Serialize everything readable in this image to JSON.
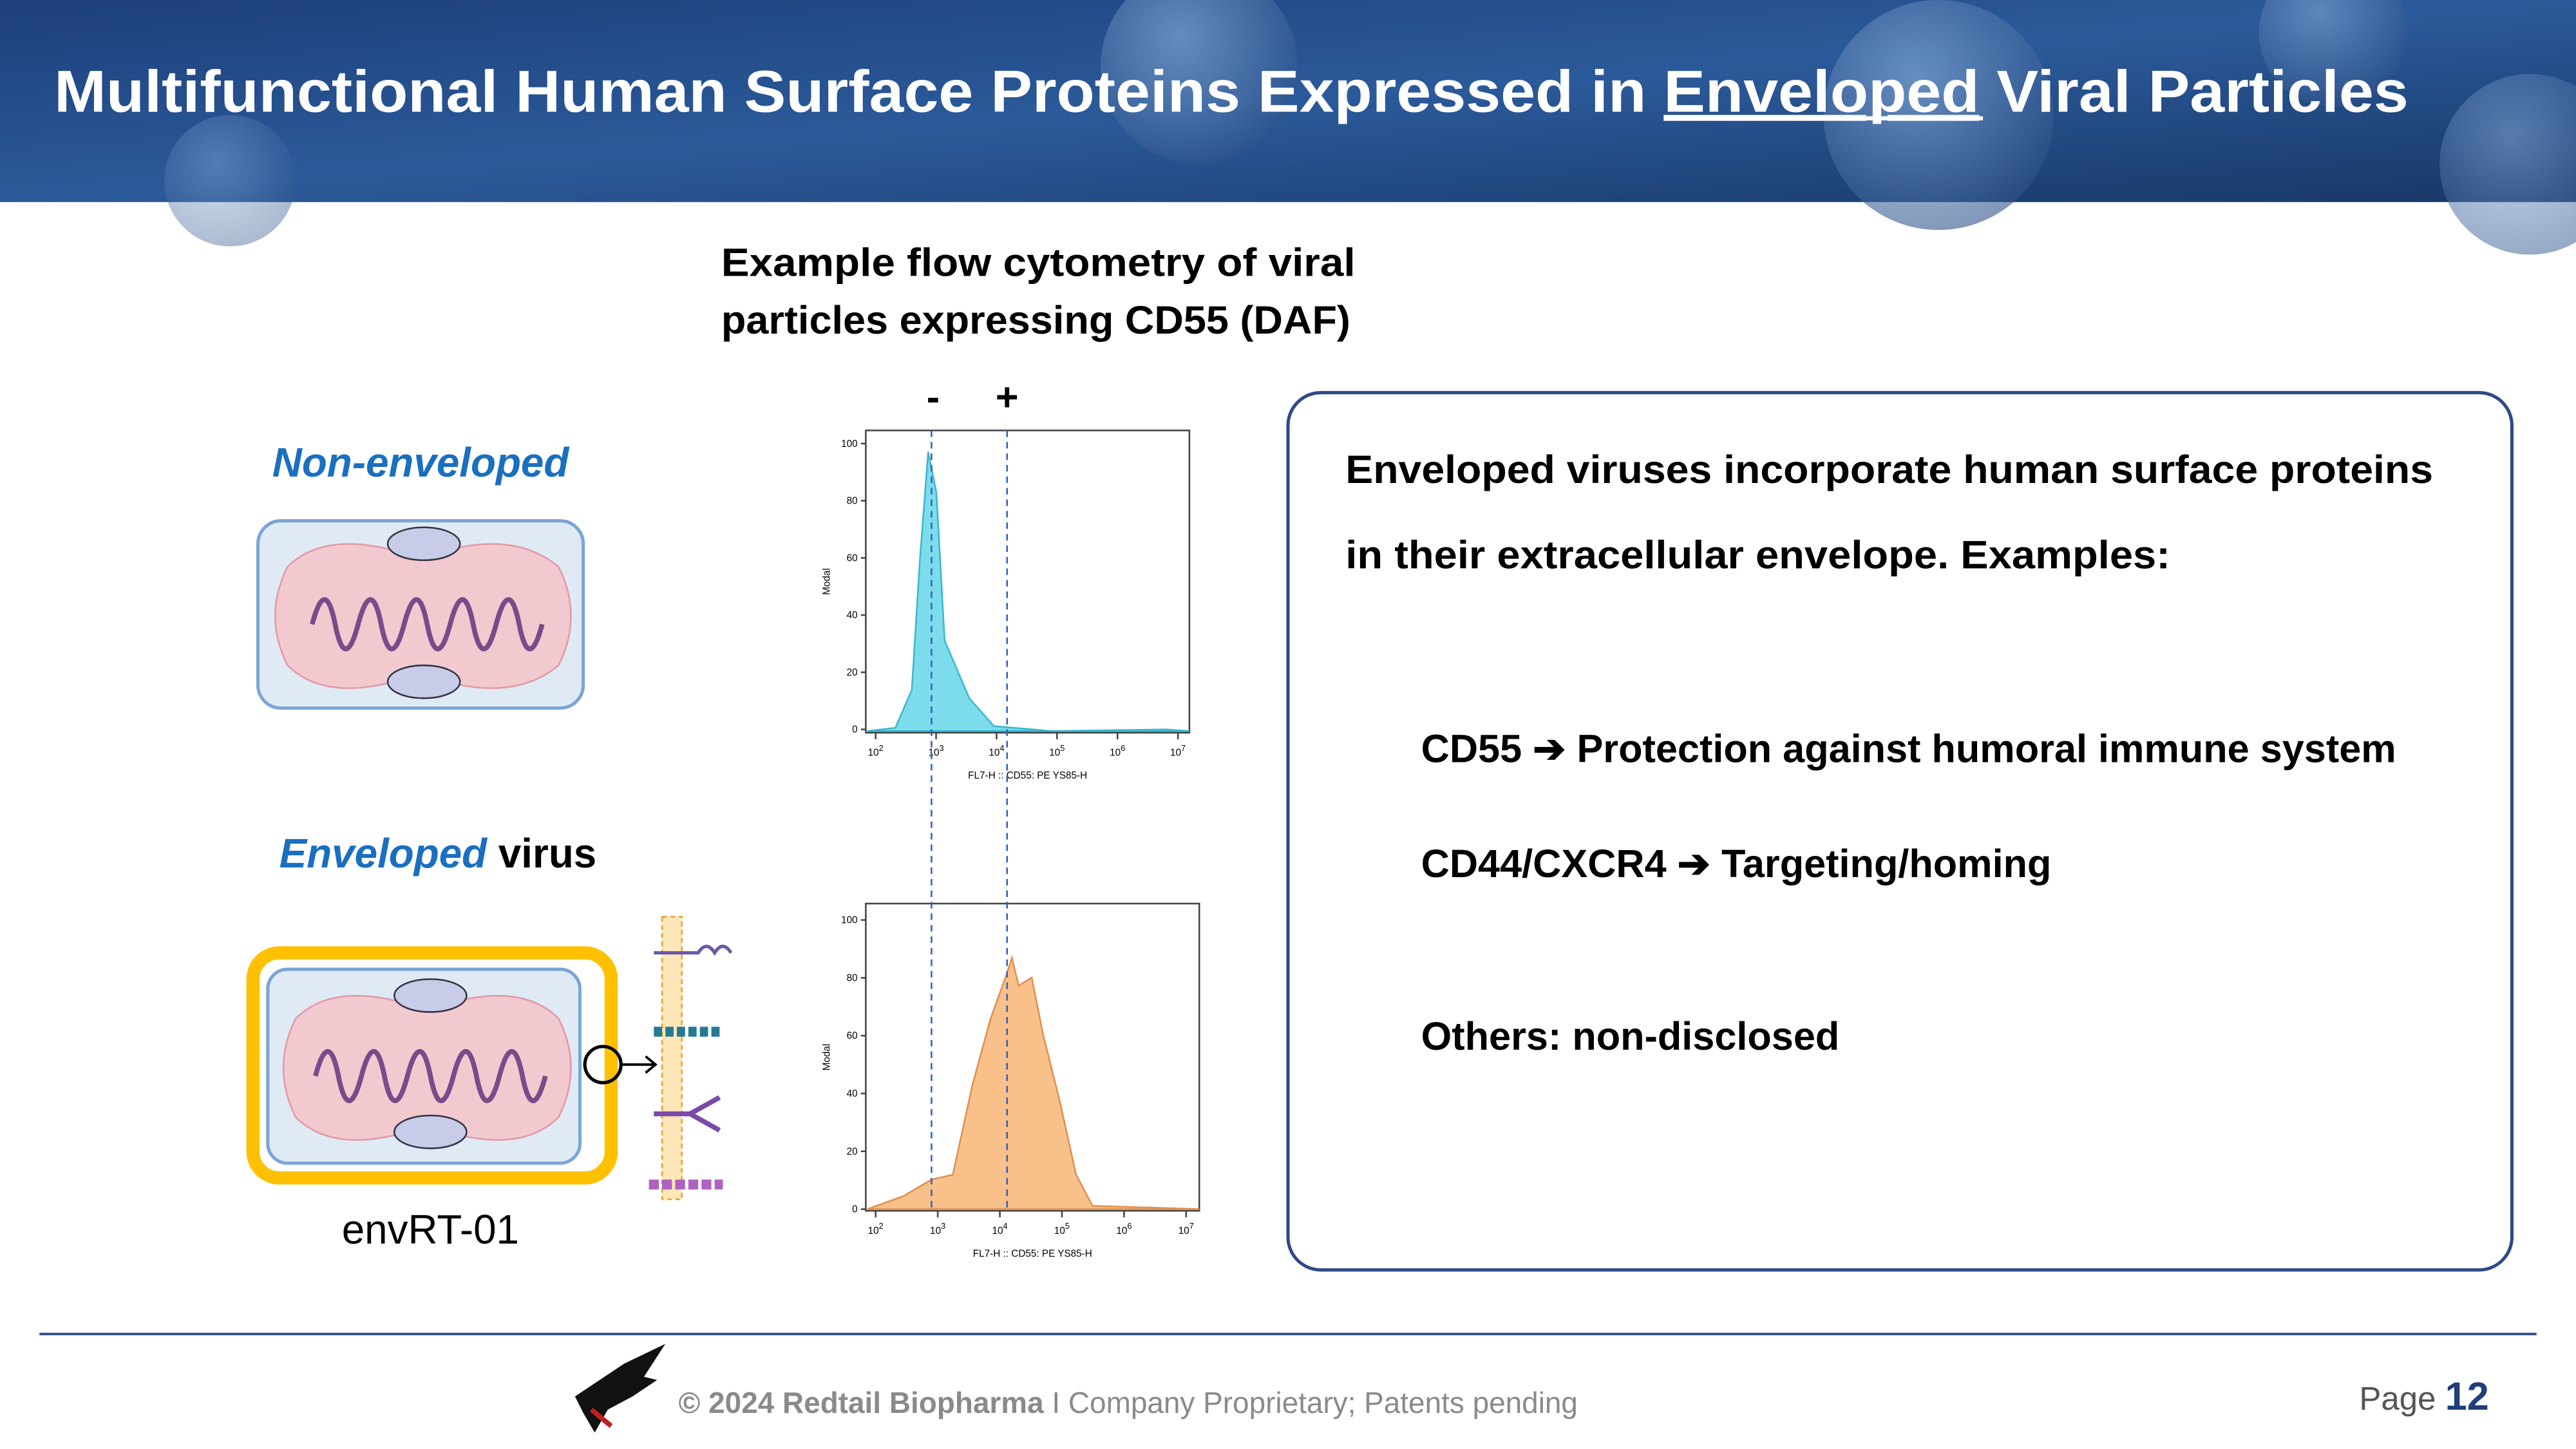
{
  "header": {
    "title_parts": [
      "Multifunctional Human Surface Proteins Expressed in ",
      "Enveloped",
      " Viral Particles"
    ]
  },
  "figure_caption": [
    "Example flow cytometry of viral",
    "particles expressing CD55 (DAF)"
  ],
  "gate_labels": [
    "-",
    "+"
  ],
  "left": {
    "non_enveloped": "Non-enveloped",
    "enveloped": "Enveloped",
    "virus": "virus",
    "product": "envRT-01"
  },
  "histograms": [
    {
      "y_label": "Modal",
      "x_label": "FL7-H :: CD55: PE YS85-H",
      "yticks": [
        "0",
        "20",
        "40",
        "60",
        "80",
        "100"
      ],
      "x_tick_base": "10",
      "x_tick_exponents": [
        "2",
        "3",
        "4",
        "5",
        "6",
        "7"
      ]
    },
    {
      "y_label": "Modal",
      "x_label": "FL7-H :: CD55: PE YS85-H",
      "yticks": [
        "0",
        "20",
        "40",
        "60",
        "80",
        "100"
      ],
      "x_tick_base": "10",
      "x_tick_exponents": [
        "2",
        "3",
        "4",
        "5",
        "6",
        "7"
      ]
    }
  ],
  "box": {
    "intro": [
      "Enveloped viruses incorporate human surface proteins",
      "in their extracellular envelope. Examples:"
    ],
    "items": [
      {
        "name": "CD55",
        "text": "Protection against humoral immune system"
      },
      {
        "name": "CD44/CXCR4",
        "text": "Targeting/homing"
      }
    ],
    "others": "Others: non-disclosed"
  },
  "footer": {
    "copyright": "© 2024 Redtail Biopharma",
    "separator": "I",
    "note": "Company Proprietary; Patents pending",
    "page_label": "Page",
    "page_number": "12"
  }
}
